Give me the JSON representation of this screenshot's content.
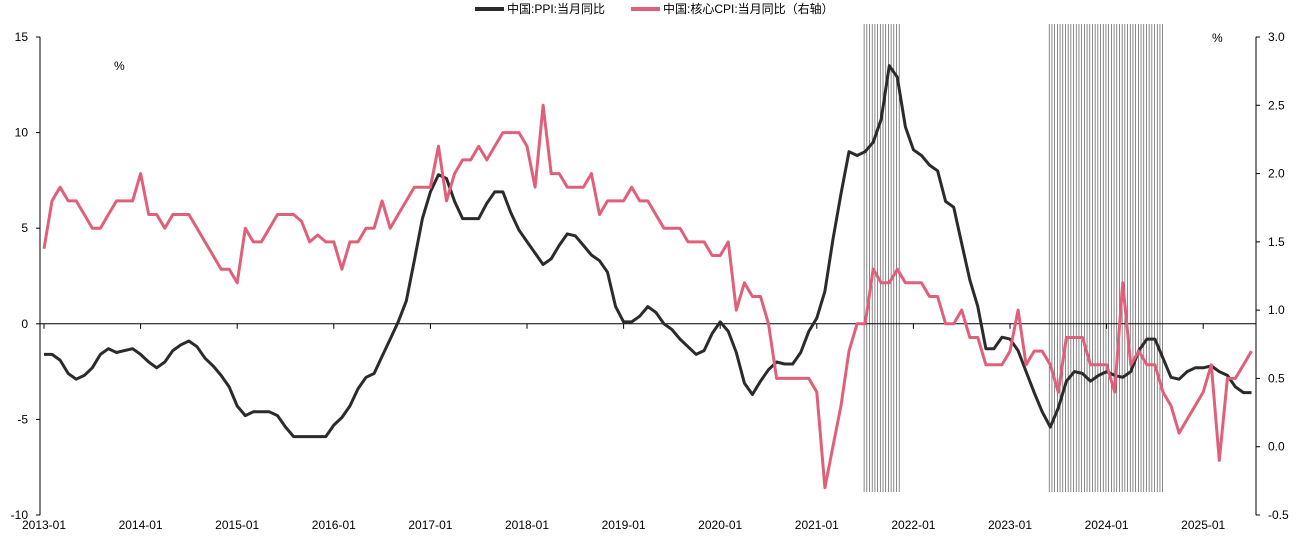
{
  "chart_data": {
    "type": "line",
    "title": "",
    "legend": {
      "placement": "top-center",
      "items": [
        "中国:PPI:当月同比",
        "中国:核心CPI:当月同比（右轴）"
      ]
    },
    "start": "2013-01",
    "x_tick_labels": [
      "2013-01",
      "2014-01",
      "2015-01",
      "2016-01",
      "2017-01",
      "2018-01",
      "2019-01",
      "2020-01",
      "2021-01",
      "2022-01",
      "2023-01",
      "2024-01",
      "2025-01"
    ],
    "y_left": {
      "unit": "%",
      "ylim": [
        -10,
        15
      ],
      "ticks": [
        "15",
        "10",
        "5",
        "0",
        "-5",
        "-10"
      ]
    },
    "y_right": {
      "unit": "%",
      "ylim": [
        -0.5,
        3.0
      ],
      "ticks": [
        "3.0",
        "2.5",
        "2.0",
        "1.5",
        "1.0",
        "0.5",
        "0.0",
        "-0.5"
      ]
    },
    "shaded_periods": [
      [
        "2021-07",
        "2021-11"
      ],
      [
        "2023-06",
        "2024-08"
      ]
    ],
    "series": [
      {
        "name": "中国:PPI:当月同比",
        "axis": "left",
        "color": "#2b2b2b",
        "values": [
          -1.6,
          -1.6,
          -1.9,
          -2.6,
          -2.9,
          -2.7,
          -2.3,
          -1.6,
          -1.3,
          -1.5,
          -1.4,
          -1.3,
          -1.6,
          -2.0,
          -2.3,
          -2.0,
          -1.4,
          -1.1,
          -0.9,
          -1.2,
          -1.8,
          -2.2,
          -2.7,
          -3.3,
          -4.3,
          -4.8,
          -4.6,
          -4.6,
          -4.6,
          -4.8,
          -5.4,
          -5.9,
          -5.9,
          -5.9,
          -5.9,
          -5.9,
          -5.3,
          -4.9,
          -4.3,
          -3.4,
          -2.8,
          -2.6,
          -1.7,
          -0.8,
          0.1,
          1.2,
          3.3,
          5.5,
          6.9,
          7.8,
          7.6,
          6.4,
          5.5,
          5.5,
          5.5,
          6.3,
          6.9,
          6.9,
          5.8,
          4.9,
          4.3,
          3.7,
          3.1,
          3.4,
          4.1,
          4.7,
          4.6,
          4.1,
          3.6,
          3.3,
          2.7,
          0.9,
          0.1,
          0.1,
          0.4,
          0.9,
          0.6,
          0.0,
          -0.3,
          -0.8,
          -1.2,
          -1.6,
          -1.4,
          -0.5,
          0.1,
          -0.4,
          -1.5,
          -3.1,
          -3.7,
          -3.0,
          -2.4,
          -2.0,
          -2.1,
          -2.1,
          -1.5,
          -0.4,
          0.3,
          1.7,
          4.4,
          6.8,
          9.0,
          8.8,
          9.0,
          9.5,
          10.7,
          13.5,
          12.9,
          10.3,
          9.1,
          8.8,
          8.3,
          8.0,
          6.4,
          6.1,
          4.2,
          2.3,
          0.9,
          -1.3,
          -1.3,
          -0.7,
          -0.8,
          -1.4,
          -2.5,
          -3.6,
          -4.6,
          -5.4,
          -4.4,
          -3.0,
          -2.5,
          -2.6,
          -3.0,
          -2.7,
          -2.5,
          -2.7,
          -2.8,
          -2.5,
          -1.4,
          -0.8,
          -0.8,
          -1.8,
          -2.8,
          -2.9,
          -2.5,
          -2.3,
          -2.3,
          -2.2,
          -2.5,
          -2.7,
          -3.3,
          -3.6,
          -3.6
        ]
      },
      {
        "name": "中国:核心CPI:当月同比（右轴）",
        "axis": "right",
        "color": "#e0607a",
        "values": [
          1.45,
          1.8,
          1.9,
          1.8,
          1.8,
          1.7,
          1.6,
          1.6,
          1.7,
          1.8,
          1.8,
          1.8,
          2.0,
          1.7,
          1.7,
          1.6,
          1.7,
          1.7,
          1.7,
          1.6,
          1.5,
          1.4,
          1.3,
          1.3,
          1.2,
          1.6,
          1.5,
          1.5,
          1.6,
          1.7,
          1.7,
          1.7,
          1.65,
          1.5,
          1.55,
          1.5,
          1.5,
          1.3,
          1.5,
          1.5,
          1.6,
          1.6,
          1.8,
          1.6,
          1.7,
          1.8,
          1.9,
          1.9,
          1.9,
          2.2,
          1.8,
          2.0,
          2.1,
          2.1,
          2.2,
          2.1,
          2.2,
          2.3,
          2.3,
          2.3,
          2.2,
          1.9,
          2.5,
          2.0,
          2.0,
          1.9,
          1.9,
          1.9,
          2.0,
          1.7,
          1.8,
          1.8,
          1.8,
          1.9,
          1.8,
          1.8,
          1.7,
          1.6,
          1.6,
          1.6,
          1.5,
          1.5,
          1.5,
          1.4,
          1.4,
          1.5,
          1.0,
          1.2,
          1.1,
          1.1,
          0.9,
          0.5,
          0.5,
          0.5,
          0.5,
          0.5,
          0.4,
          -0.3,
          0.0,
          0.3,
          0.7,
          0.9,
          0.9,
          1.3,
          1.2,
          1.2,
          1.3,
          1.2,
          1.2,
          1.2,
          1.1,
          1.1,
          0.9,
          0.9,
          1.0,
          0.8,
          0.8,
          0.6,
          0.6,
          0.6,
          0.7,
          1.0,
          0.6,
          0.7,
          0.7,
          0.6,
          0.4,
          0.8,
          0.8,
          0.8,
          0.6,
          0.6,
          0.6,
          0.4,
          1.2,
          0.6,
          0.7,
          0.6,
          0.6,
          0.4,
          0.3,
          0.1,
          0.2,
          0.3,
          0.4,
          0.6,
          -0.1,
          0.5,
          0.5,
          0.6,
          0.7
        ]
      }
    ]
  }
}
